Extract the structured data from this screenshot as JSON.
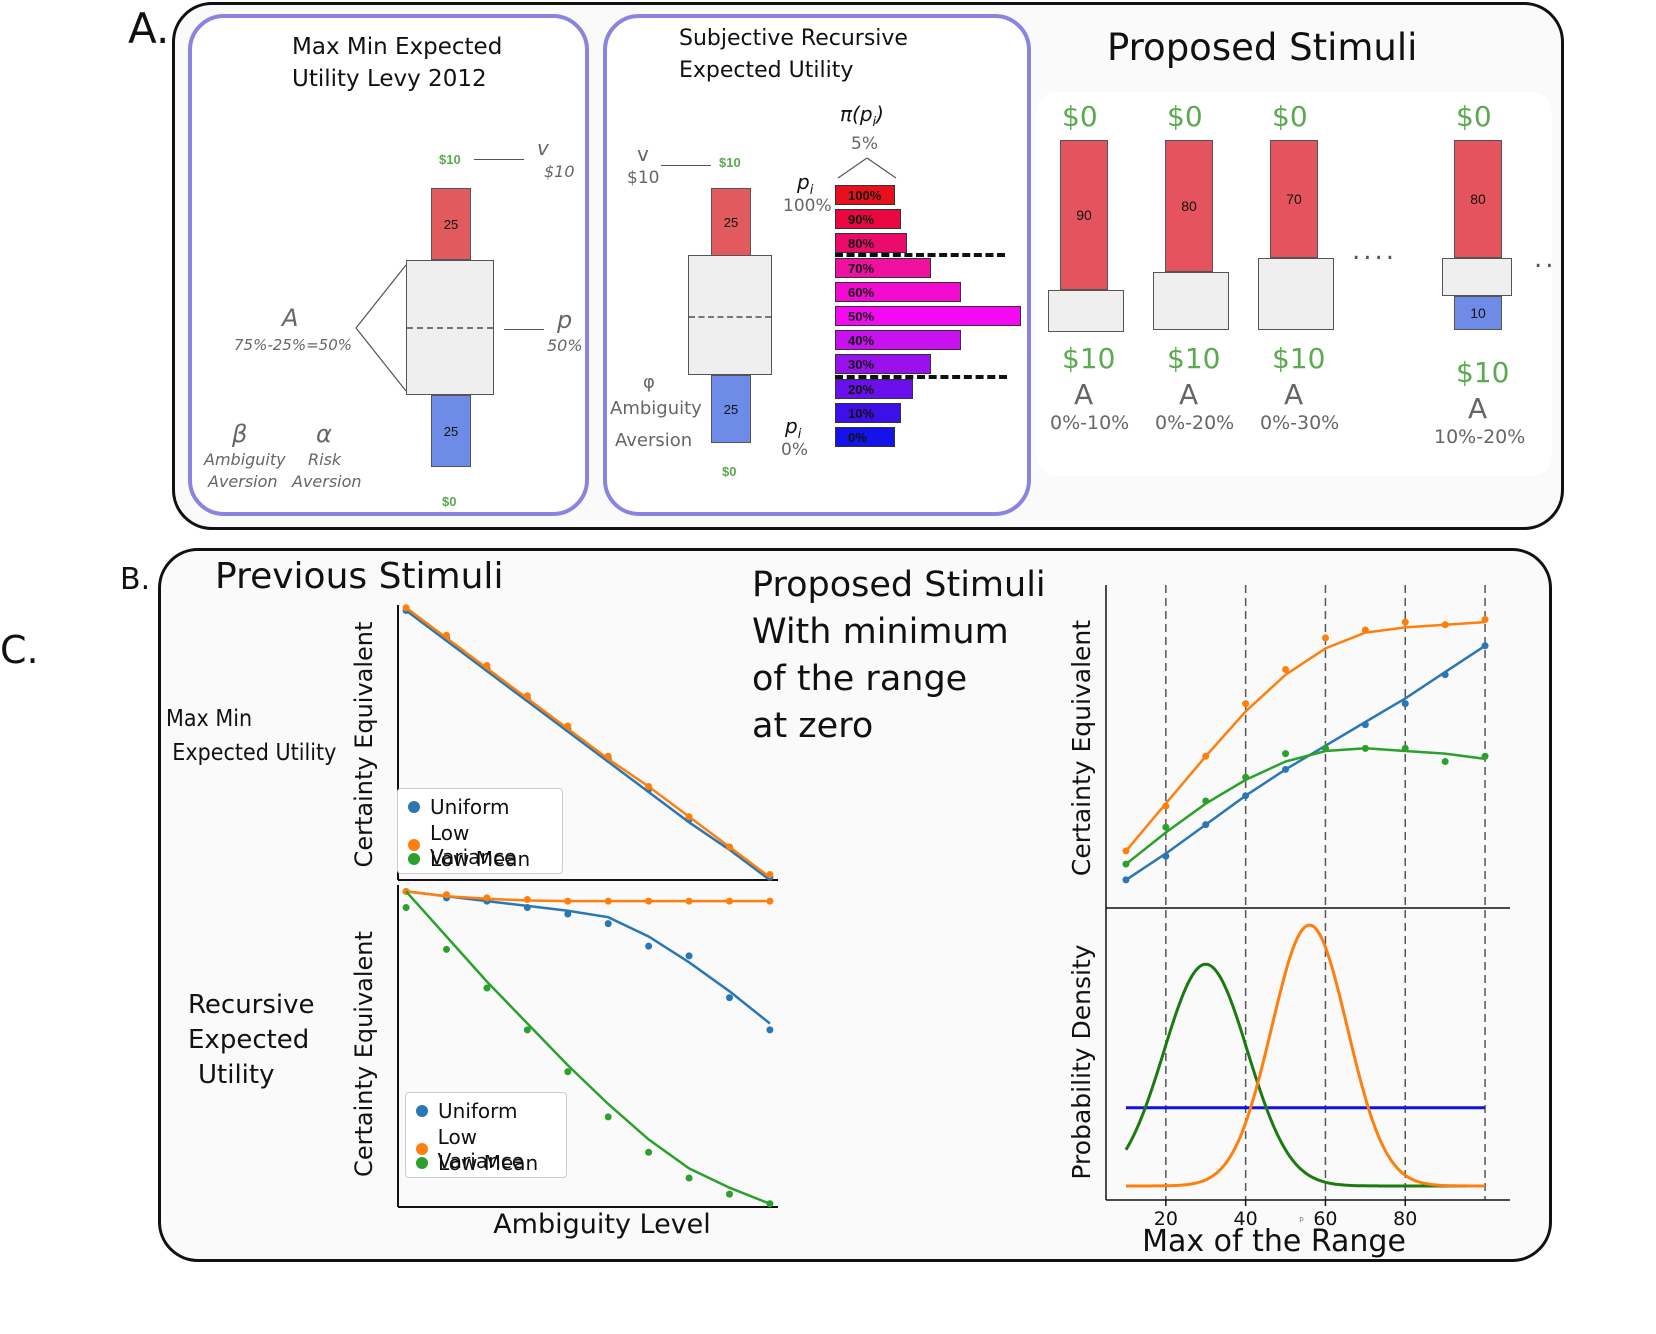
{
  "labels": {
    "a": "A.",
    "b": "B.",
    "c": "C."
  },
  "maxmin": {
    "title1": "Max Min Expected",
    "title2": "Utility Levy 2012",
    "top_amount": "$10",
    "bottom_amount": "$0",
    "v_symbol": "v",
    "v_value": "$10",
    "p_symbol": "p",
    "p_value": "50%",
    "a_symbol": "A",
    "a_value": "75%-25%=50%",
    "red_value": "25",
    "blue_value": "25",
    "beta_symbol": "β",
    "beta_label1": "Ambiguity",
    "beta_label2": "Aversion",
    "alpha_symbol": "α",
    "alpha_label1": "Risk",
    "alpha_label2": "Aversion"
  },
  "srec": {
    "title1": "Subjective Recursive",
    "title2": "Expected Utility",
    "v_symbol": "v",
    "v_value": "$10",
    "top_amount": "$10",
    "bottom_amount": "$0",
    "red_value": "25",
    "blue_value": "25",
    "phi_symbol": "φ",
    "phi_label1": "Ambiguity",
    "phi_label2": "Aversion",
    "pi_label": "π(p",
    "pi_sub": "i",
    "pi_close": ")",
    "pi_value": "5%",
    "pi_top_symbol": "p",
    "pi_top_sub": "i",
    "pi_top_value": "100%",
    "pi_bottom_symbol": "p",
    "pi_bottom_sub": "i",
    "pi_bottom_value": "0%",
    "dist": [
      {
        "label": "100%",
        "width": 5,
        "color": "#e8101c"
      },
      {
        "label": "90%",
        "width": 5.5,
        "color": "#e8083f"
      },
      {
        "label": "80%",
        "width": 6,
        "color": "#ec0a6a"
      },
      {
        "label": "70%",
        "width": 8,
        "color": "#f010a0"
      },
      {
        "label": "60%",
        "width": 10.5,
        "color": "#f20ad0"
      },
      {
        "label": "50%",
        "width": 15.5,
        "color": "#f40af2"
      },
      {
        "label": "40%",
        "width": 10.5,
        "color": "#c810f0"
      },
      {
        "label": "30%",
        "width": 8,
        "color": "#9a10ee"
      },
      {
        "label": "20%",
        "width": 6.5,
        "color": "#6a10ea"
      },
      {
        "label": "10%",
        "width": 5.5,
        "color": "#3e10e8"
      },
      {
        "label": "0%",
        "width": 5,
        "color": "#1414e8"
      }
    ]
  },
  "proposedA": {
    "title": "Proposed Stimuli",
    "dots_mid": "....",
    "dots_end": "..",
    "items": [
      {
        "top": "$0",
        "red": "90",
        "blue": "",
        "bottom": "$10",
        "a": "A",
        "range": "0%-10%"
      },
      {
        "top": "$0",
        "red": "80",
        "blue": "",
        "bottom": "$10",
        "a": "A",
        "range": "0%-20%"
      },
      {
        "top": "$0",
        "red": "70",
        "blue": "",
        "bottom": "$10",
        "a": "A",
        "range": "0%-30%"
      },
      {
        "top": "$0",
        "red": "80",
        "blue": "10",
        "bottom": "$10",
        "a": "A",
        "range": "10%-20%"
      }
    ]
  },
  "sectionB": {
    "previous_title": "Previous Stimuli",
    "proposed_title": [
      "Proposed Stimuli",
      "With minimum",
      "of the range",
      "at zero"
    ],
    "row1_label": [
      "Max Min",
      "Expected Utility"
    ],
    "row2_label": [
      "Recursive",
      "Expected",
      "Utility"
    ],
    "ylabel_top": "Certainty Equivalent",
    "ylabel_bottom": "Certainty Equivalent",
    "xlabel": "Ambiguity Level",
    "legend": [
      "Uniform",
      "Low Variance",
      "Low Mean"
    ],
    "right_ylabel_top": "Certainty Equivalent",
    "right_ylabel_bottom": "Probability Density",
    "right_xlabel": "Max of the Range",
    "right_xticks": [
      "20",
      "40",
      "60",
      "80"
    ],
    "stray_mark": "p"
  },
  "colors": {
    "uniform": "#2a77b4",
    "low_variance": "#ff7f0e",
    "low_mean": "#2ca02c",
    "uniform_density": "#1010e8",
    "low_mean_density": "#1b7a10"
  },
  "chart_data": [
    {
      "type": "line",
      "title": "Max Min Expected Utility",
      "xlabel": "Ambiguity Level",
      "ylabel": "Certainty Equivalent",
      "x": [
        0,
        1,
        2,
        3,
        4,
        5,
        6,
        7,
        8,
        9
      ],
      "xlim": [
        -0.2,
        9.2
      ],
      "ylim": [
        0,
        1
      ],
      "series": [
        {
          "name": "Uniform",
          "color": "#2a77b4",
          "points": [
            0.98,
            0.88,
            0.77,
            0.66,
            0.55,
            0.44,
            0.33,
            0.22,
            0.12,
            0.01
          ],
          "fit": [
            0.98,
            0.87,
            0.76,
            0.65,
            0.54,
            0.43,
            0.32,
            0.21,
            0.11,
            0.0
          ]
        },
        {
          "name": "Low Variance",
          "color": "#ff7f0e",
          "points": [
            0.99,
            0.89,
            0.78,
            0.67,
            0.56,
            0.45,
            0.34,
            0.23,
            0.12,
            0.02
          ],
          "fit": [
            0.99,
            0.88,
            0.77,
            0.66,
            0.55,
            0.44,
            0.34,
            0.23,
            0.12,
            0.01
          ]
        }
      ]
    },
    {
      "type": "line",
      "title": "Recursive Expected Utility",
      "xlabel": "Ambiguity Level",
      "ylabel": "Certainty Equivalent",
      "x": [
        0,
        1,
        2,
        3,
        4,
        5,
        6,
        7,
        8,
        9
      ],
      "xlim": [
        -0.2,
        9.2
      ],
      "ylim": [
        0,
        1
      ],
      "series": [
        {
          "name": "Uniform",
          "color": "#2a77b4",
          "points": [
            0.98,
            0.96,
            0.95,
            0.93,
            0.91,
            0.88,
            0.81,
            0.78,
            0.65,
            0.55
          ],
          "fit": [
            0.98,
            0.965,
            0.95,
            0.935,
            0.92,
            0.9,
            0.84,
            0.76,
            0.67,
            0.57
          ]
        },
        {
          "name": "Low Variance",
          "color": "#ff7f0e",
          "points": [
            0.98,
            0.97,
            0.96,
            0.955,
            0.95,
            0.95,
            0.95,
            0.95,
            0.95,
            0.95
          ],
          "fit": [
            0.98,
            0.965,
            0.957,
            0.952,
            0.95,
            0.95,
            0.95,
            0.95,
            0.95,
            0.95
          ]
        },
        {
          "name": "Low Mean",
          "color": "#2ca02c",
          "points": [
            0.93,
            0.8,
            0.68,
            0.55,
            0.42,
            0.28,
            0.17,
            0.09,
            0.04,
            0.01
          ],
          "fit": [
            0.98,
            0.84,
            0.7,
            0.57,
            0.44,
            0.32,
            0.21,
            0.12,
            0.06,
            0.01
          ]
        }
      ]
    },
    {
      "type": "line",
      "title": "Proposed Stimuli",
      "xlabel": "Max of the Range",
      "ylabel": "Certainty Equivalent",
      "xlim": [
        5,
        105
      ],
      "ylim": [
        0,
        1
      ],
      "x": [
        10,
        20,
        30,
        40,
        50,
        60,
        70,
        80,
        90,
        100
      ],
      "series": [
        {
          "name": "Uniform",
          "color": "#2a77b4",
          "points": [
            0.05,
            0.14,
            0.26,
            0.37,
            0.47,
            0.55,
            0.64,
            0.72,
            0.83,
            0.94
          ],
          "fit": [
            0.05,
            0.15,
            0.26,
            0.37,
            0.47,
            0.56,
            0.65,
            0.74,
            0.84,
            0.94
          ]
        },
        {
          "name": "Low Variance",
          "color": "#ff7f0e",
          "points": [
            0.16,
            0.33,
            0.52,
            0.72,
            0.85,
            0.97,
            1.0,
            1.03,
            1.02,
            1.04
          ],
          "fit": [
            0.16,
            0.34,
            0.52,
            0.69,
            0.83,
            0.93,
            0.99,
            1.01,
            1.02,
            1.03
          ]
        },
        {
          "name": "Low Mean",
          "color": "#2ca02c",
          "points": [
            0.11,
            0.25,
            0.35,
            0.44,
            0.53,
            0.55,
            0.55,
            0.55,
            0.5,
            0.52
          ],
          "fit": [
            0.11,
            0.23,
            0.34,
            0.43,
            0.5,
            0.54,
            0.55,
            0.54,
            0.53,
            0.51
          ]
        }
      ],
      "vlines": [
        20,
        40,
        60,
        80,
        100
      ]
    },
    {
      "type": "line",
      "title": "Probability Density",
      "xlabel": "Max of the Range",
      "ylabel": "Probability Density",
      "xlim": [
        5,
        105
      ],
      "ylim": [
        0,
        1.05
      ],
      "xticks": [
        20,
        40,
        60,
        80
      ],
      "series": [
        {
          "name": "Uniform",
          "color": "#1010e8",
          "kind": "uniform",
          "from": 10,
          "to": 100,
          "level": 0.3
        },
        {
          "name": "Low Mean",
          "color": "#1b7a10",
          "kind": "normal",
          "mean": 30,
          "sd": 10.5,
          "peak": 0.85,
          "from": 10,
          "to": 100
        },
        {
          "name": "Low Variance",
          "color": "#ff7f0e",
          "kind": "normal",
          "mean": 56,
          "sd": 9.5,
          "peak": 1.0,
          "from": 10,
          "to": 100
        }
      ],
      "vlines": [
        20,
        40,
        60,
        80,
        100
      ]
    }
  ]
}
